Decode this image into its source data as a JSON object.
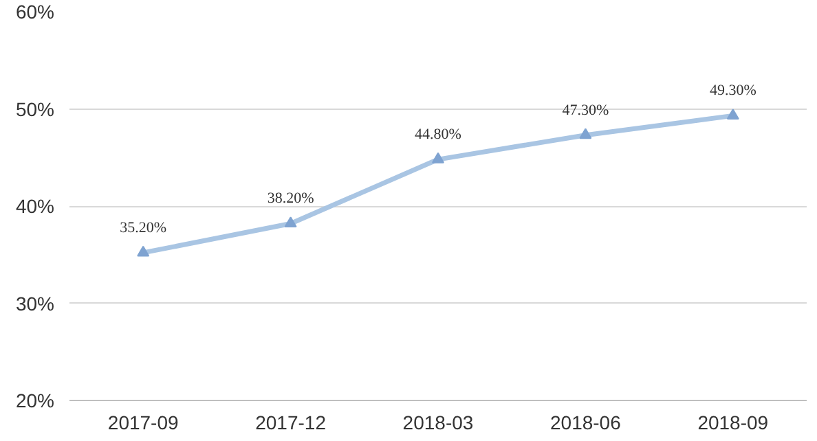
{
  "chart_data": {
    "type": "line",
    "categories": [
      "2017-09",
      "2017-12",
      "2018-03",
      "2018-06",
      "2018-09"
    ],
    "series": [
      {
        "color": "#a9c5e3",
        "values": [
          35.2,
          38.2,
          44.8,
          47.3,
          49.3
        ],
        "value_labels": [
          "35.20%",
          "38.20%",
          "44.80%",
          "47.30%",
          "49.30%"
        ]
      }
    ],
    "ylim": [
      20,
      60
    ],
    "yticks": [
      {
        "value": 20,
        "label": "20%"
      },
      {
        "value": 30,
        "label": "30%"
      },
      {
        "value": 40,
        "label": "40%"
      },
      {
        "value": 50,
        "label": "50%"
      },
      {
        "value": 60,
        "label": "60%"
      }
    ],
    "grid": "y",
    "marker": "triangle",
    "line_style": "solid"
  }
}
